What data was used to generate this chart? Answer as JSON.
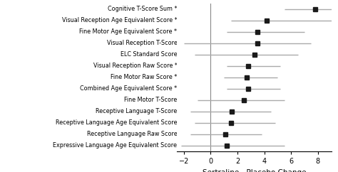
{
  "labels": [
    "Cognitive T-Score Sum *",
    "Visual Reception Age Equivalent Score *",
    "Fine Motor Age Equivalent Score *",
    "Visual Reception T-Score",
    "ELC Standard Score",
    "Visual Reception Raw Score *",
    "Fine Motor Raw Score *",
    "Combined Age Equivalent Score *",
    "Fine Motor T-Score",
    "Receptive Language T-Score",
    "Receptive Language Age Equivalent Score",
    "Receptive Language Raw Score",
    "Expressive Language Age Equivalent Score"
  ],
  "estimates": [
    7.8,
    4.2,
    3.5,
    3.5,
    3.3,
    2.8,
    2.7,
    2.8,
    2.5,
    1.6,
    1.5,
    1.1,
    1.2
  ],
  "ci_low": [
    5.5,
    1.5,
    1.2,
    -2.0,
    -1.2,
    1.2,
    1.0,
    1.2,
    -1.0,
    -1.5,
    -1.2,
    -1.5,
    -2.2
  ],
  "ci_high": [
    10.5,
    10.5,
    7.0,
    7.5,
    6.5,
    5.2,
    5.0,
    5.2,
    5.5,
    4.5,
    4.8,
    3.8,
    5.5
  ],
  "xlim": [
    -2.5,
    9.0
  ],
  "xticks": [
    -2,
    0,
    2,
    4,
    6,
    8
  ],
  "xlabel": "Sertraline - Placebo Change",
  "vline_x": 0,
  "marker_color": "#1a1a1a",
  "line_color": "#aaaaaa",
  "marker_size": 5,
  "line_width": 1.0,
  "label_fontsize": 5.8,
  "axis_fontsize": 7.5,
  "tick_fontsize": 7
}
